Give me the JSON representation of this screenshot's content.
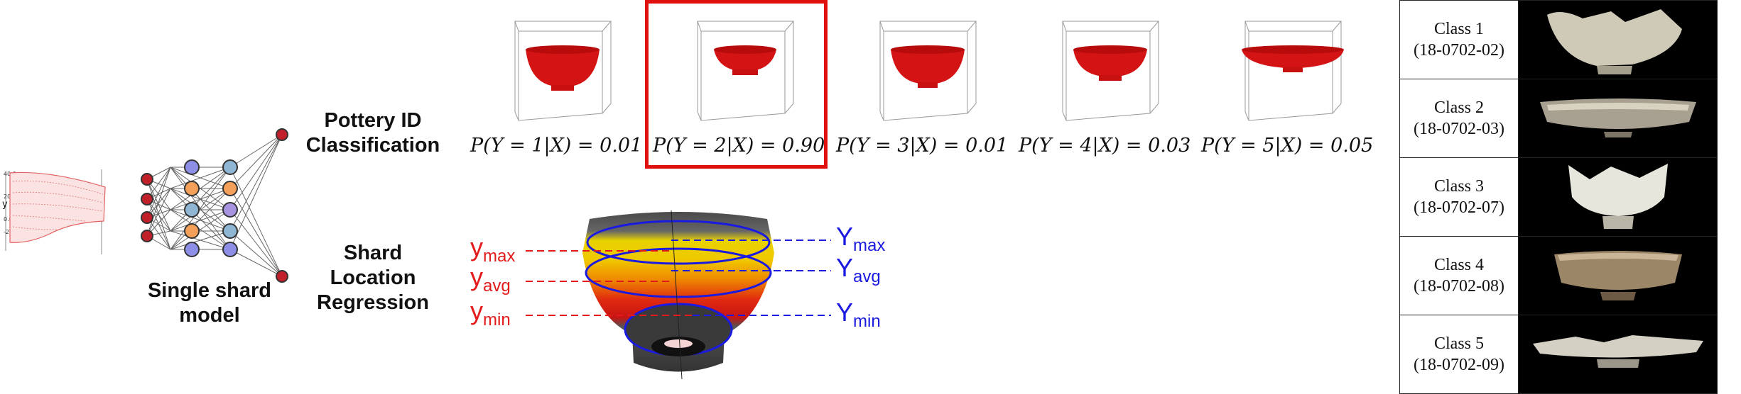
{
  "labels": {
    "single_shard_model": [
      "Single shard",
      "model"
    ],
    "classification": [
      "Pottery ID",
      "Classification"
    ],
    "regression": [
      "Shard",
      "Location",
      "Regression"
    ]
  },
  "probabilities": [
    {
      "text": "P(Y = 1|X) = 0.01",
      "highlighted": false
    },
    {
      "text": "P(Y = 2|X) = 0.90",
      "highlighted": true
    },
    {
      "text": "P(Y = 3|X) = 0.01",
      "highlighted": false
    },
    {
      "text": "P(Y = 4|X) = 0.03",
      "highlighted": false
    },
    {
      "text": "P(Y = 5|X) = 0.05",
      "highlighted": false
    }
  ],
  "regression_labels": {
    "shard": [
      {
        "base": "y",
        "sub": "max"
      },
      {
        "base": "y",
        "sub": "avg"
      },
      {
        "base": "y",
        "sub": "min"
      }
    ],
    "vessel": [
      {
        "base": "Y",
        "sub": "max"
      },
      {
        "base": "Y",
        "sub": "avg"
      },
      {
        "base": "Y",
        "sub": "min"
      }
    ]
  },
  "classes": [
    {
      "name": "Class 1",
      "id": "(18-0702-02)"
    },
    {
      "name": "Class 2",
      "id": "(18-0702-03)"
    },
    {
      "name": "Class 3",
      "id": "(18-0702-07)"
    },
    {
      "name": "Class 4",
      "id": "(18-0702-08)"
    },
    {
      "name": "Class 5",
      "id": "(18-0702-09)"
    }
  ],
  "colors": {
    "highlight": "#e01010",
    "shard_red": "#e31a1a",
    "vessel_blue": "#1a1ae0",
    "node_red": "#c0202a",
    "node_blue": "#8d8fe6",
    "node_orange": "#f5a05a",
    "node_teal": "#8fb7d4",
    "node_purple": "#a893e0",
    "pottery_red": "#d41414"
  },
  "icons": {
    "shard_point_cloud": "shard-point-cloud-icon",
    "network": "neural-network-icon",
    "bowl_plot": "bowl-3d-plot-icon",
    "heatmap": "vessel-heatmap-icon",
    "pottery_photo": "pottery-photo-icon"
  }
}
